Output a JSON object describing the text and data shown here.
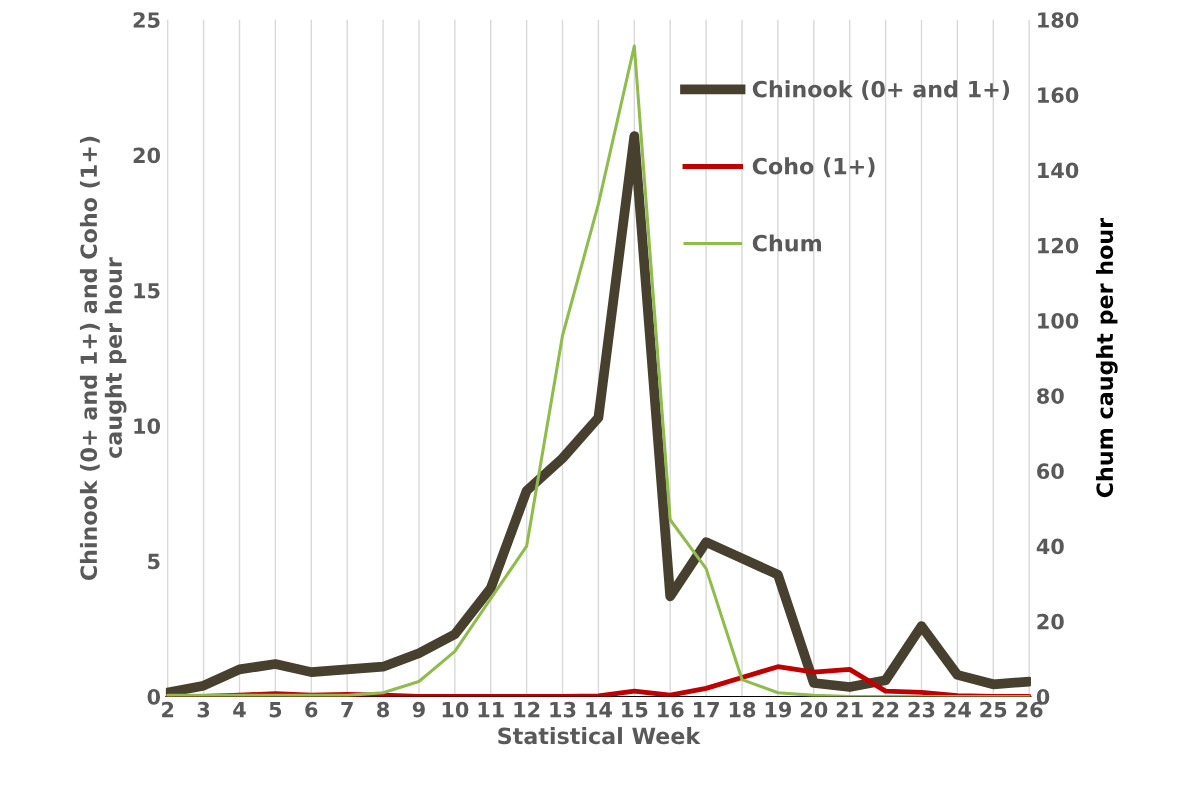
{
  "chart_data": {
    "type": "line",
    "xlabel": "Statistical Week",
    "ylabel": "Chinook (0+ and 1+) and Coho (1+)\ncaught per hour",
    "y2label": "Chum caught per hour",
    "categories": [
      "2",
      "3",
      "4",
      "5",
      "6",
      "7",
      "8",
      "9",
      "10",
      "11",
      "12",
      "13",
      "14",
      "15",
      "16",
      "17",
      "18",
      "19",
      "20",
      "21",
      "22",
      "23",
      "24",
      "25",
      "26"
    ],
    "series": [
      {
        "name": "Chinook (0+ and 1+)",
        "color": "#48402e",
        "values": [
          0.15,
          0.4,
          1.0,
          1.2,
          0.9,
          1.0,
          1.1,
          1.6,
          2.3,
          4.0,
          7.6,
          8.8,
          10.3,
          20.7,
          3.7,
          5.7,
          5.1,
          4.5,
          0.5,
          0.35,
          0.6,
          2.6,
          0.8,
          0.45,
          0.55
        ]
      },
      {
        "name": "Coho (1+)",
        "color": "#c00000",
        "values": [
          0,
          0,
          0.05,
          0.1,
          0.05,
          0.08,
          0.05,
          0,
          0,
          0,
          0,
          0,
          0.02,
          0.2,
          0.05,
          0.3,
          0.7,
          1.1,
          0.9,
          1.0,
          0.2,
          0.15,
          0.03,
          0,
          0
        ]
      },
      {
        "name": "Chum",
        "color": "#8fbc4c",
        "axis": "y2",
        "values": [
          0.3,
          0.3,
          0.3,
          0.3,
          0.3,
          0.3,
          1,
          4,
          12,
          26,
          40,
          96,
          131,
          173,
          47,
          34,
          4.5,
          1,
          0.3,
          0,
          0,
          0,
          0,
          0,
          0
        ]
      }
    ],
    "ylim": [
      0,
      25
    ],
    "yticks": [
      0,
      5,
      10,
      15,
      20,
      25
    ],
    "y2lim": [
      0,
      180
    ],
    "y2ticks": [
      0,
      20,
      40,
      60,
      80,
      100,
      120,
      140,
      160,
      180
    ],
    "grid": "x",
    "legend": "top right"
  }
}
